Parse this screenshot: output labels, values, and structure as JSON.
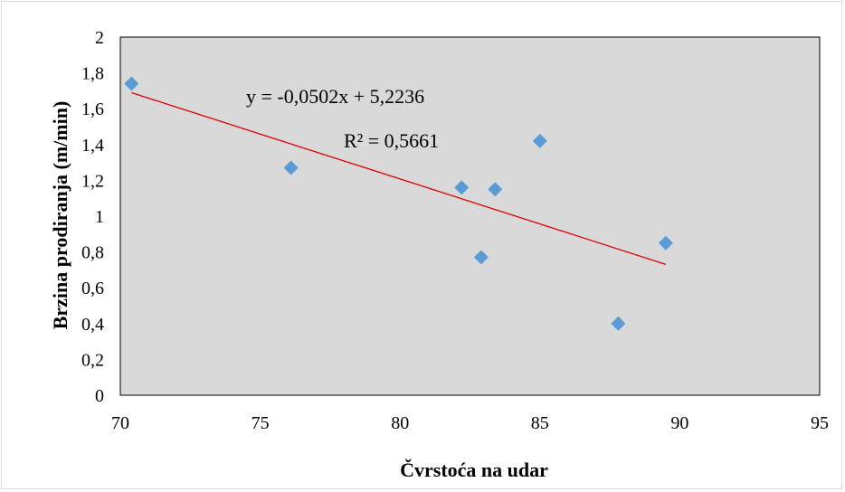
{
  "chart_data": {
    "type": "scatter",
    "xlabel": "Čvrstoća na udar",
    "ylabel": "Brzina prodiranja (m/min)",
    "xlim": [
      70,
      95
    ],
    "ylim": [
      0,
      2
    ],
    "x_ticks": [
      "70",
      "75",
      "80",
      "85",
      "90",
      "95"
    ],
    "y_ticks": [
      "0",
      "0,2",
      "0,4",
      "0,6",
      "0,8",
      "1",
      "1,2",
      "1,4",
      "1,6",
      "1,8",
      "2"
    ],
    "points": [
      {
        "x": 70.4,
        "y": 1.74
      },
      {
        "x": 76.1,
        "y": 1.27
      },
      {
        "x": 82.2,
        "y": 1.16
      },
      {
        "x": 82.9,
        "y": 0.77
      },
      {
        "x": 83.4,
        "y": 1.15
      },
      {
        "x": 85.0,
        "y": 1.42
      },
      {
        "x": 87.8,
        "y": 0.4
      },
      {
        "x": 89.5,
        "y": 0.85
      }
    ],
    "trendline": {
      "slope": -0.0502,
      "intercept": 5.2236,
      "x_start": 70.4,
      "x_end": 89.5
    },
    "equation_label": "y = -0,0502x + 5,2236",
    "r2_label": "R² = 0,5661",
    "plot_background": "#d9d9d9",
    "marker_color": "#5b9bd5",
    "trendline_color": "#e00000",
    "grid": false,
    "legend": "none"
  }
}
